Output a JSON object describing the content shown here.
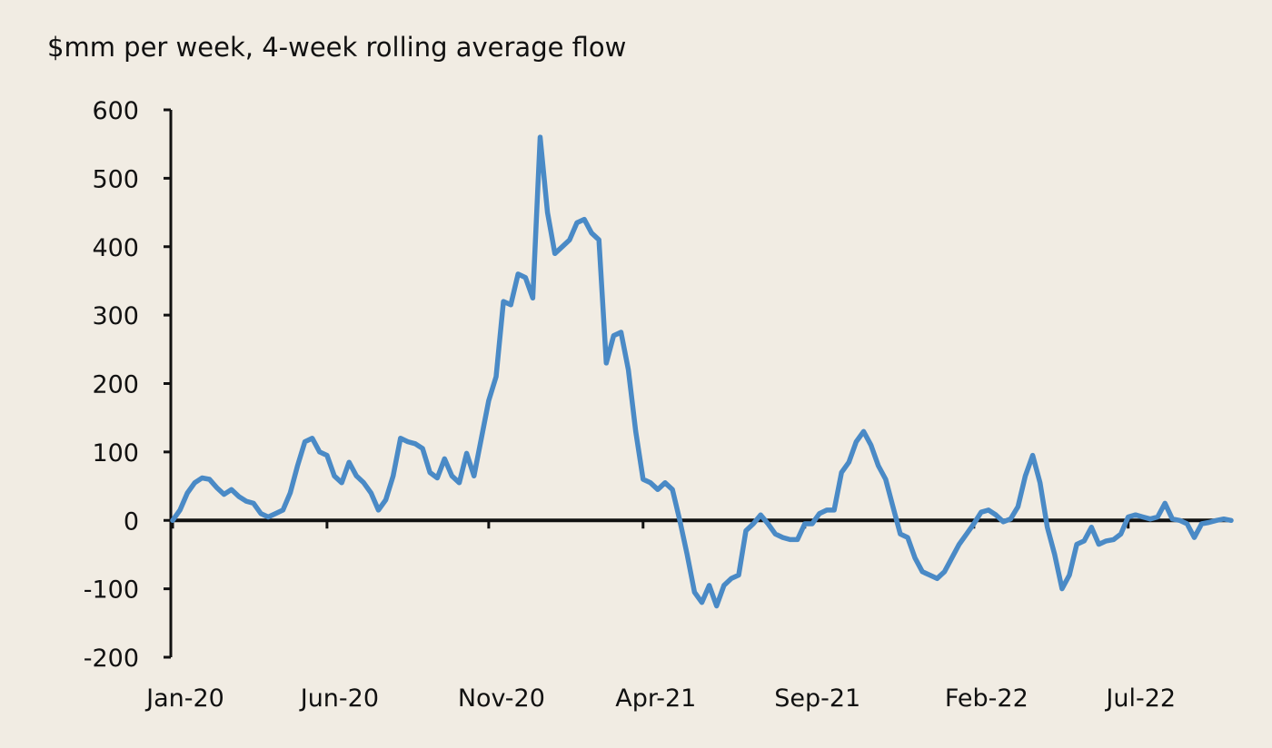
{
  "chart_data": {
    "type": "line",
    "title": "$mm per week, 4-week rolling average flow",
    "categories": [
      "Jan-20",
      null,
      null,
      null,
      null,
      null,
      null,
      null,
      null,
      null,
      null,
      null,
      null,
      null,
      null,
      null,
      null,
      null,
      null,
      null,
      null,
      "Jun-20",
      null,
      null,
      null,
      null,
      null,
      null,
      null,
      null,
      null,
      null,
      null,
      null,
      null,
      null,
      null,
      null,
      null,
      null,
      null,
      null,
      null,
      "Nov-20",
      null,
      null,
      null,
      null,
      null,
      null,
      null,
      null,
      null,
      null,
      null,
      null,
      null,
      null,
      null,
      null,
      null,
      null,
      null,
      null,
      "Apr-21",
      null,
      null,
      null,
      null,
      null,
      null,
      null,
      null,
      null,
      null,
      null,
      null,
      null,
      null,
      null,
      null,
      null,
      null,
      null,
      null,
      null,
      "Sep-21",
      null,
      null,
      null,
      null,
      null,
      null,
      null,
      null,
      null,
      null,
      null,
      null,
      null,
      null,
      null,
      null,
      null,
      null,
      null,
      null,
      null,
      null,
      "Feb-22",
      null,
      null,
      null,
      null,
      null,
      null,
      null,
      null,
      null,
      null,
      null,
      null,
      null,
      null,
      null,
      null,
      null,
      null,
      null,
      null,
      "Jul-22",
      null,
      null,
      null,
      null,
      null,
      null,
      null,
      null,
      null,
      null,
      null,
      null,
      null,
      null
    ],
    "series": [
      {
        "color": "#4a8ac6",
        "values": [
          0,
          15,
          40,
          55,
          62,
          60,
          48,
          38,
          45,
          35,
          28,
          25,
          10,
          5,
          10,
          15,
          40,
          80,
          115,
          120,
          100,
          95,
          65,
          55,
          85,
          65,
          55,
          40,
          15,
          30,
          65,
          120,
          115,
          112,
          105,
          70,
          62,
          90,
          65,
          55,
          98,
          65,
          120,
          175,
          210,
          320,
          315,
          360,
          355,
          325,
          560,
          450,
          390,
          400,
          410,
          435,
          440,
          420,
          410,
          230,
          270,
          275,
          220,
          130,
          60,
          55,
          45,
          55,
          45,
          0,
          -50,
          -105,
          -120,
          -95,
          -125,
          -95,
          -85,
          -80,
          -15,
          -5,
          8,
          -5,
          -20,
          -25,
          -28,
          -28,
          -5,
          -5,
          10,
          15,
          15,
          70,
          85,
          115,
          130,
          110,
          80,
          60,
          20,
          -20,
          -25,
          -55,
          -75,
          -80,
          -85,
          -75,
          -55,
          -35,
          -20,
          -5,
          12,
          15,
          8,
          -2,
          2,
          20,
          65,
          95,
          55,
          -10,
          -50,
          -100,
          -80,
          -35,
          -30,
          -10,
          -35,
          -30,
          -28,
          -20,
          5,
          8,
          5,
          2,
          5,
          25,
          2,
          0,
          -5,
          -25,
          -5,
          -3,
          0,
          2,
          0
        ]
      }
    ],
    "ylim": [
      -200,
      600
    ],
    "yticks": [
      -200,
      -100,
      0,
      100,
      200,
      300,
      400,
      500,
      600
    ]
  }
}
